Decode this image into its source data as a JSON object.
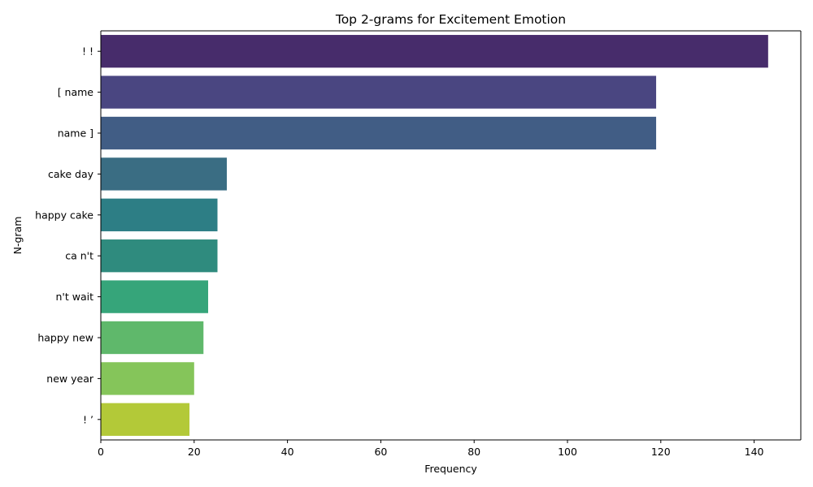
{
  "chart_data": {
    "type": "bar",
    "orientation": "horizontal",
    "title": "Top 2-grams for Excitement Emotion",
    "xlabel": "Frequency",
    "ylabel": "N-gram",
    "xlim": [
      0,
      150
    ],
    "xticks": [
      0,
      20,
      40,
      60,
      80,
      100,
      120,
      140
    ],
    "grid": false,
    "legend": "none",
    "categories": [
      "! !",
      "[ name",
      "name ]",
      "cake day",
      "happy cake",
      "ca n't",
      "n't wait",
      "happy new",
      "new year",
      "! ’"
    ],
    "values": [
      143,
      119,
      119,
      27,
      25,
      25,
      23,
      22,
      20,
      19
    ],
    "colors": [
      "#472c6b",
      "#4a4681",
      "#415d85",
      "#3a6d83",
      "#2d7e85",
      "#2f8b7e",
      "#36a57a",
      "#5fb86b",
      "#85c55a",
      "#b3c938"
    ]
  }
}
